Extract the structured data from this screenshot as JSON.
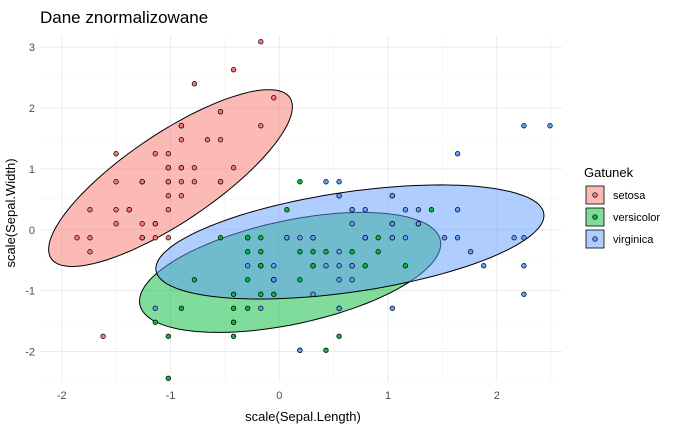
{
  "chart_data": {
    "type": "scatter",
    "title": "Dane znormalizowane",
    "xlabel": "scale(Sepal.Length)",
    "ylabel": "scale(Sepal.Width)",
    "xlim": [
      -2.2,
      2.6
    ],
    "ylim": [
      -2.5,
      3.2
    ],
    "x_ticks": [
      -2,
      -1,
      0,
      1,
      2
    ],
    "y_ticks": [
      -2,
      -1,
      0,
      1,
      2,
      3
    ],
    "grid": true,
    "legend": {
      "title": "Gatunek",
      "position": "right"
    },
    "colors": {
      "setosa": "#F8766D",
      "versicolor": "#00BA38",
      "virginica": "#619CFF"
    },
    "series": [
      {
        "name": "setosa",
        "ellipse": {
          "center": [
            -1.0,
            0.85
          ],
          "semi_major": 1.75,
          "semi_minor": 0.55,
          "angle_deg": 54
        },
        "points": [
          [
            -0.9,
            1.02
          ],
          [
            -1.14,
            -0.13
          ],
          [
            -1.38,
            0.33
          ],
          [
            -1.5,
            0.1
          ],
          [
            -1.02,
            1.25
          ],
          [
            -0.54,
            1.94
          ],
          [
            -1.5,
            0.79
          ],
          [
            -1.02,
            0.79
          ],
          [
            -1.74,
            -0.36
          ],
          [
            -1.14,
            0.1
          ],
          [
            -0.54,
            1.48
          ],
          [
            -1.26,
            0.79
          ],
          [
            -1.26,
            -0.13
          ],
          [
            -1.86,
            -0.13
          ],
          [
            -0.05,
            2.17
          ],
          [
            -0.17,
            3.09
          ],
          [
            -0.54,
            1.94
          ],
          [
            -0.9,
            1.02
          ],
          [
            -0.17,
            1.71
          ],
          [
            -0.9,
            1.71
          ],
          [
            -0.54,
            0.79
          ],
          [
            -0.9,
            1.48
          ],
          [
            -1.5,
            1.25
          ],
          [
            -0.9,
            0.56
          ],
          [
            -1.26,
            0.79
          ],
          [
            -1.02,
            -0.13
          ],
          [
            -1.02,
            0.79
          ],
          [
            -0.78,
            1.02
          ],
          [
            -0.78,
            0.79
          ],
          [
            -1.38,
            0.33
          ],
          [
            -1.26,
            0.1
          ],
          [
            -0.54,
            0.79
          ],
          [
            -0.78,
            2.4
          ],
          [
            -0.42,
            2.63
          ],
          [
            -1.14,
            0.1
          ],
          [
            -1.02,
            0.33
          ],
          [
            -0.42,
            1.02
          ],
          [
            -1.14,
            1.25
          ],
          [
            -1.74,
            -0.13
          ],
          [
            -0.9,
            0.79
          ],
          [
            -1.02,
            1.02
          ],
          [
            -1.62,
            -1.75
          ],
          [
            -1.74,
            0.33
          ],
          [
            -1.02,
            1.02
          ],
          [
            -0.9,
            1.71
          ],
          [
            -1.26,
            -0.13
          ],
          [
            -0.9,
            1.71
          ],
          [
            -1.5,
            0.33
          ],
          [
            -0.66,
            1.48
          ],
          [
            -1.02,
            0.56
          ]
        ]
      },
      {
        "name": "versicolor",
        "ellipse": {
          "center": [
            0.1,
            -0.7
          ],
          "semi_major": 1.5,
          "semi_minor": 0.8,
          "angle_deg": 27
        },
        "points": [
          [
            1.4,
            0.33
          ],
          [
            0.67,
            0.33
          ],
          [
            1.28,
            0.1
          ],
          [
            -0.42,
            -1.75
          ],
          [
            0.79,
            -0.59
          ],
          [
            -0.17,
            -0.59
          ],
          [
            0.55,
            0.56
          ],
          [
            -1.14,
            -1.52
          ],
          [
            0.91,
            -0.36
          ],
          [
            -0.78,
            -0.82
          ],
          [
            -1.02,
            -2.44
          ],
          [
            0.07,
            -0.13
          ],
          [
            0.19,
            -1.98
          ],
          [
            0.31,
            -0.36
          ],
          [
            -0.29,
            -0.36
          ],
          [
            1.04,
            0.1
          ],
          [
            -0.29,
            -0.13
          ],
          [
            -0.05,
            -0.82
          ],
          [
            0.43,
            -1.98
          ],
          [
            -0.29,
            -1.29
          ],
          [
            0.07,
            0.33
          ],
          [
            0.31,
            -0.59
          ],
          [
            0.55,
            -1.29
          ],
          [
            0.31,
            -0.59
          ],
          [
            0.67,
            -0.36
          ],
          [
            0.91,
            -0.13
          ],
          [
            1.16,
            -0.59
          ],
          [
            1.04,
            -0.13
          ],
          [
            0.19,
            -0.36
          ],
          [
            -0.17,
            -1.06
          ],
          [
            -0.42,
            -1.52
          ],
          [
            -0.42,
            -1.52
          ],
          [
            -0.05,
            -0.82
          ],
          [
            0.19,
            -0.82
          ],
          [
            -0.54,
            -0.13
          ],
          [
            0.19,
            0.79
          ],
          [
            1.04,
            0.1
          ],
          [
            0.55,
            -1.75
          ],
          [
            -0.29,
            -0.13
          ],
          [
            -0.42,
            -1.29
          ],
          [
            -0.42,
            -1.06
          ],
          [
            0.31,
            -0.13
          ],
          [
            -0.05,
            -1.06
          ],
          [
            -1.02,
            -1.75
          ],
          [
            -0.29,
            -0.82
          ],
          [
            -0.17,
            -0.13
          ],
          [
            -0.17,
            -0.36
          ],
          [
            0.43,
            -0.36
          ],
          [
            -0.9,
            -1.29
          ],
          [
            -0.17,
            -0.59
          ]
        ]
      },
      {
        "name": "virginica",
        "ellipse": {
          "center": [
            0.65,
            -0.2
          ],
          "semi_major": 1.85,
          "semi_minor": 0.8,
          "angle_deg": 17
        },
        "points": [
          [
            0.55,
            0.56
          ],
          [
            -0.05,
            -0.82
          ],
          [
            1.52,
            -0.13
          ],
          [
            0.55,
            -0.36
          ],
          [
            0.79,
            -0.13
          ],
          [
            2.16,
            -0.13
          ],
          [
            -1.14,
            -1.29
          ],
          [
            1.76,
            -0.36
          ],
          [
            1.04,
            -1.29
          ],
          [
            1.64,
            1.25
          ],
          [
            0.79,
            0.33
          ],
          [
            0.67,
            -0.82
          ],
          [
            1.16,
            -0.13
          ],
          [
            -0.17,
            -1.29
          ],
          [
            -0.05,
            -0.59
          ],
          [
            0.67,
            0.33
          ],
          [
            0.79,
            -0.13
          ],
          [
            2.25,
            1.71
          ],
          [
            2.25,
            -1.06
          ],
          [
            0.19,
            -1.98
          ],
          [
            1.28,
            0.33
          ],
          [
            -0.29,
            -0.59
          ],
          [
            2.25,
            -0.59
          ],
          [
            0.55,
            -0.82
          ],
          [
            1.04,
            0.56
          ],
          [
            1.64,
            0.33
          ],
          [
            0.43,
            -0.59
          ],
          [
            0.31,
            -0.13
          ],
          [
            0.67,
            -0.59
          ],
          [
            1.64,
            -0.13
          ],
          [
            1.88,
            -0.59
          ],
          [
            2.49,
            1.71
          ],
          [
            0.67,
            -0.59
          ],
          [
            0.55,
            -0.59
          ],
          [
            0.31,
            -1.06
          ],
          [
            2.25,
            -0.13
          ],
          [
            0.55,
            0.79
          ],
          [
            0.67,
            0.1
          ],
          [
            0.19,
            -0.13
          ],
          [
            1.28,
            0.1
          ],
          [
            1.04,
            0.1
          ],
          [
            1.28,
            0.1
          ],
          [
            -0.05,
            -0.82
          ],
          [
            1.16,
            0.33
          ],
          [
            1.04,
            0.56
          ],
          [
            1.04,
            -0.13
          ],
          [
            0.55,
            -1.29
          ],
          [
            0.79,
            -0.13
          ],
          [
            0.43,
            0.79
          ],
          [
            0.07,
            -0.13
          ]
        ]
      }
    ]
  }
}
